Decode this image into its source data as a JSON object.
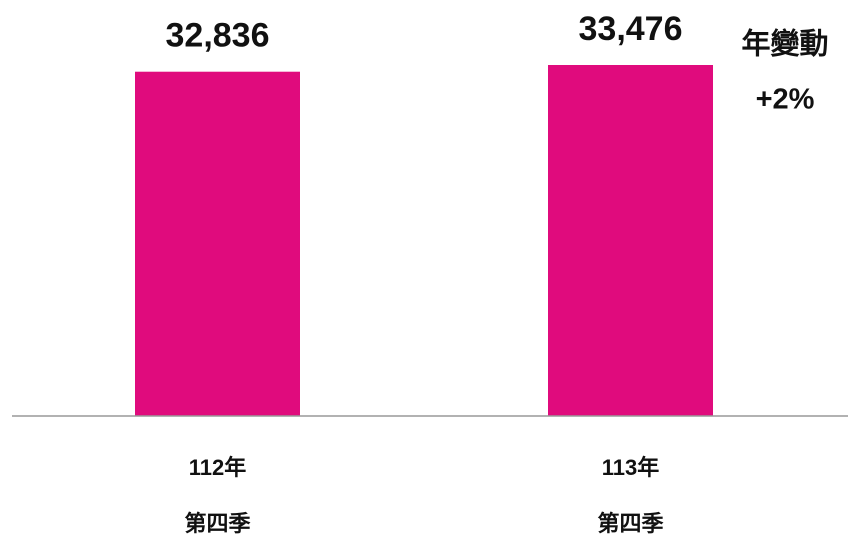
{
  "chart_data": {
    "type": "bar",
    "categories": [
      [
        "112年",
        "第四季"
      ],
      [
        "113年",
        "第四季"
      ]
    ],
    "values": [
      32836,
      33476
    ],
    "value_labels": [
      "32,836",
      "33,476"
    ],
    "color": "#e00b7d",
    "ylim": [
      0,
      33476
    ],
    "annotation": [
      "年變動",
      "+2%"
    ]
  }
}
